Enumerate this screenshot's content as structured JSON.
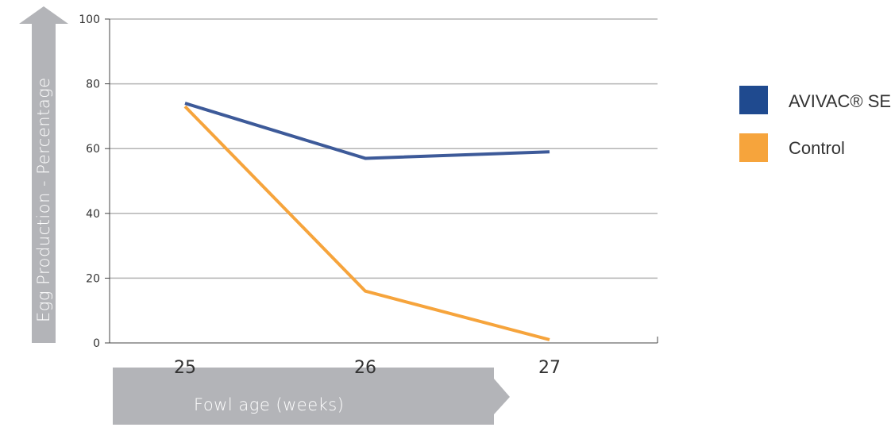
{
  "chart_data": {
    "type": "line",
    "x": [
      "25",
      "26",
      "27"
    ],
    "series": [
      {
        "name": "AVIVAC® SE",
        "values": [
          74,
          57,
          59
        ],
        "color": "#3d5a99"
      },
      {
        "name": "Control",
        "values": [
          73,
          16,
          1
        ],
        "color": "#f6a43c"
      }
    ],
    "xlabel": "Fowl age (weeks)",
    "ylabel": "Egg Production - Percentage",
    "ylim": [
      0,
      100
    ],
    "yticks": [
      0,
      20,
      40,
      60,
      80,
      100
    ],
    "grid": true,
    "legend": "right",
    "colors": {
      "grid": "#b3b3b3",
      "axis": "#444444",
      "arrow": "#b3b4b8",
      "legend_avivac": "#1f4a8f",
      "legend_control": "#f6a43c"
    }
  }
}
